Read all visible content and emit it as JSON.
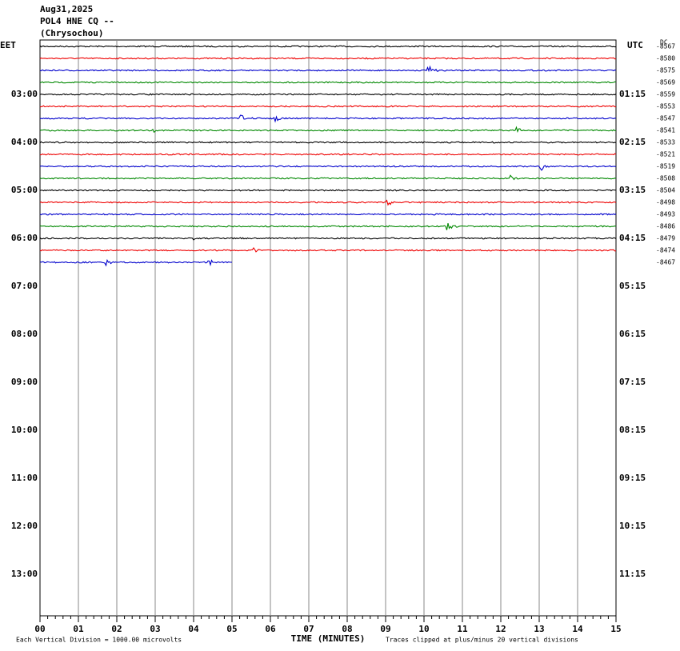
{
  "header": {
    "date": "Aug31,2025",
    "station": "POL4 HNE CQ --",
    "location": "(Chrysochou)"
  },
  "left_axis": {
    "title": "EET",
    "labels": [
      "03:00",
      "04:00",
      "05:00",
      "06:00",
      "07:00",
      "08:00",
      "09:00",
      "10:00",
      "11:00",
      "12:00",
      "13:00"
    ]
  },
  "right_axis": {
    "title": "UTC",
    "labels": [
      "01:15",
      "02:15",
      "03:15",
      "04:15",
      "05:15",
      "06:15",
      "07:15",
      "08:15",
      "09:15",
      "10:15",
      "11:15"
    ]
  },
  "dc_label": "DC",
  "trace_labels": [
    "-8567",
    "-8580",
    "-8575",
    "-8569",
    "-8559",
    "-8553",
    "-8547",
    "-8541",
    "-8533",
    "-8521",
    "-8519",
    "-8508",
    "-8504",
    "-8498",
    "-8493",
    "-8486",
    "-8479",
    "-8474",
    "-8467"
  ],
  "x_axis": {
    "labels": [
      "00",
      "01",
      "02",
      "03",
      "04",
      "05",
      "06",
      "07",
      "08",
      "09",
      "10",
      "11",
      "12",
      "13",
      "14",
      "15"
    ],
    "title": "TIME (MINUTES)"
  },
  "footer": {
    "scale_note": "Each Vertical Division = 1000.00 microvolts",
    "clip_note": "Traces clipped at plus/minus 20 vertical divisions"
  }
}
